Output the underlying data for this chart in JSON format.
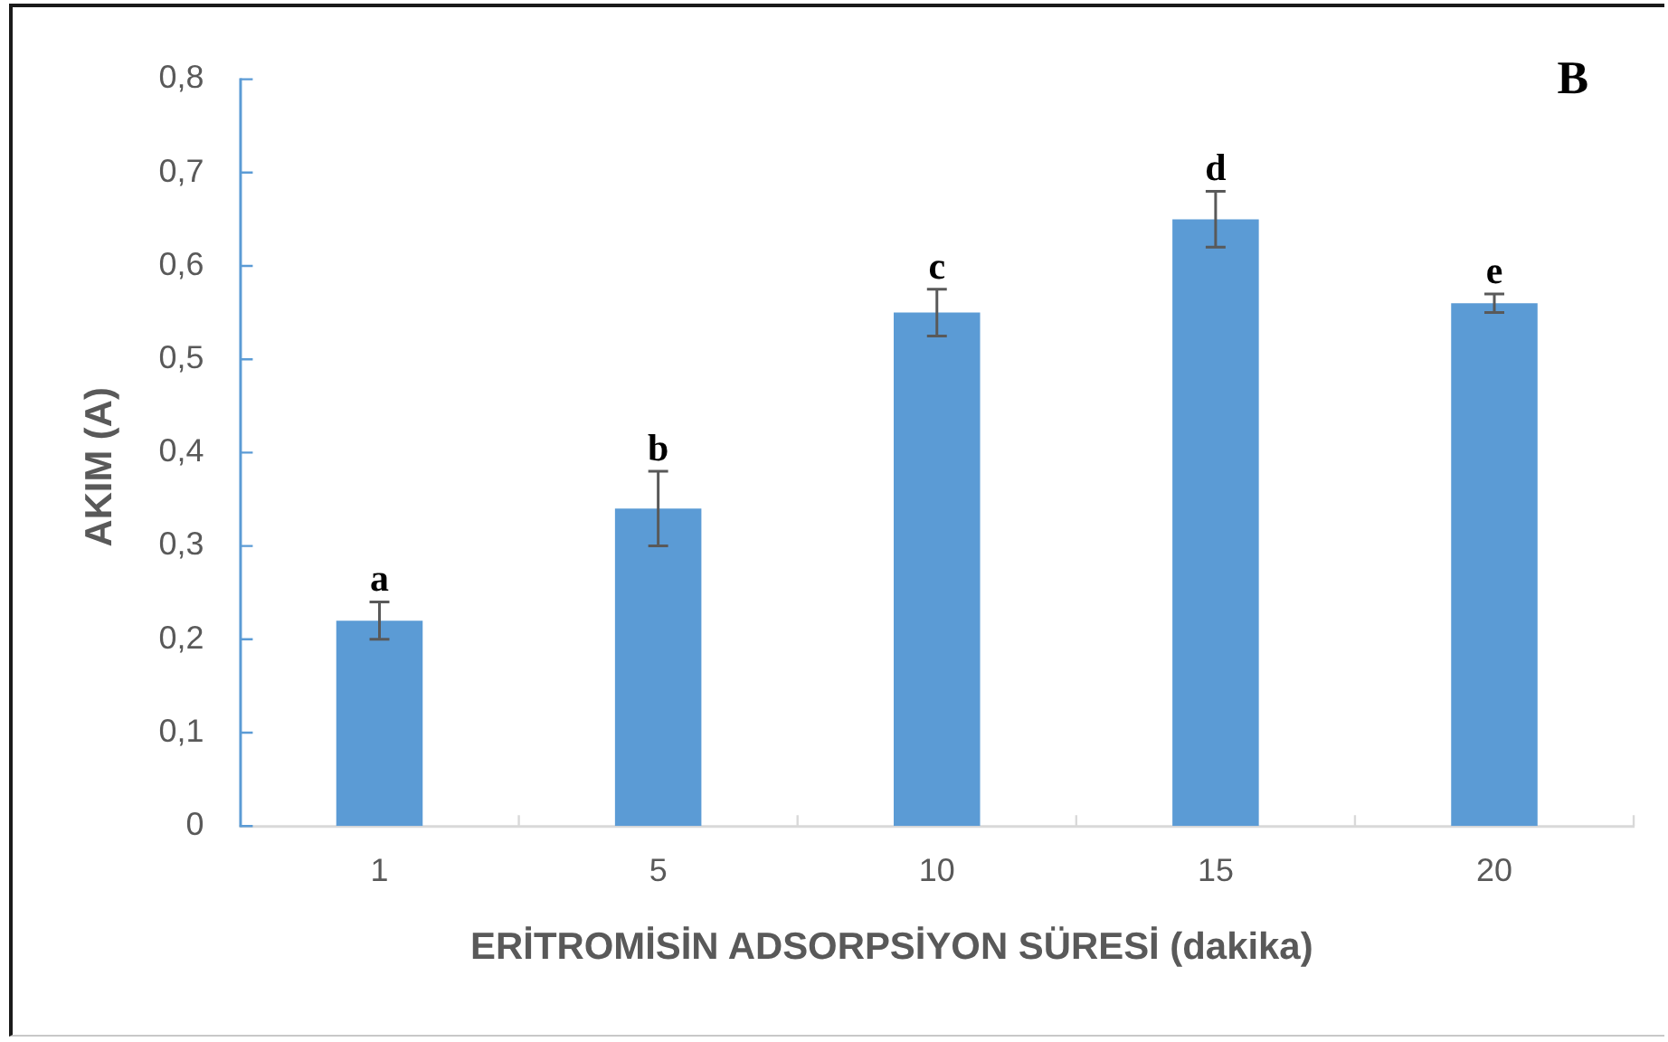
{
  "chart_data": {
    "type": "bar",
    "xlabel": "ERİTROMİSİN ADSORPSİYON SÜRESİ (dakika)",
    "ylabel": "AKIM (A)",
    "categories": [
      "1",
      "5",
      "10",
      "15",
      "20"
    ],
    "values": [
      0.22,
      0.34,
      0.55,
      0.65,
      0.56
    ],
    "errors": [
      0.02,
      0.04,
      0.025,
      0.03,
      0.01
    ],
    "color": "#5b9bd5",
    "ylim": [
      0,
      0.8
    ],
    "yticks": [
      0,
      {
        "value": 0.1,
        "label": "0,1"
      },
      {
        "value": 0.2,
        "label": "0,2"
      },
      {
        "value": 0.3,
        "label": "0,3"
      },
      {
        "value": 0.4,
        "label": "0,4"
      },
      {
        "value": 0.5,
        "label": "0,5"
      },
      {
        "value": 0.6,
        "label": "0,6"
      },
      {
        "value": 0.7,
        "label": "0,7"
      },
      {
        "value": 0.8,
        "label": "0,8"
      }
    ],
    "annotations": [
      "B",
      {
        "text": "a",
        "x": "1",
        "y": 0.24
      },
      {
        "text": "b",
        "x": "5",
        "y": 0.38
      },
      {
        "text": "c",
        "x": "10",
        "y": 0.575
      },
      {
        "text": "d",
        "x": "15",
        "y": 0.68
      },
      {
        "text": "e",
        "x": "20",
        "y": 0.57
      }
    ]
  }
}
